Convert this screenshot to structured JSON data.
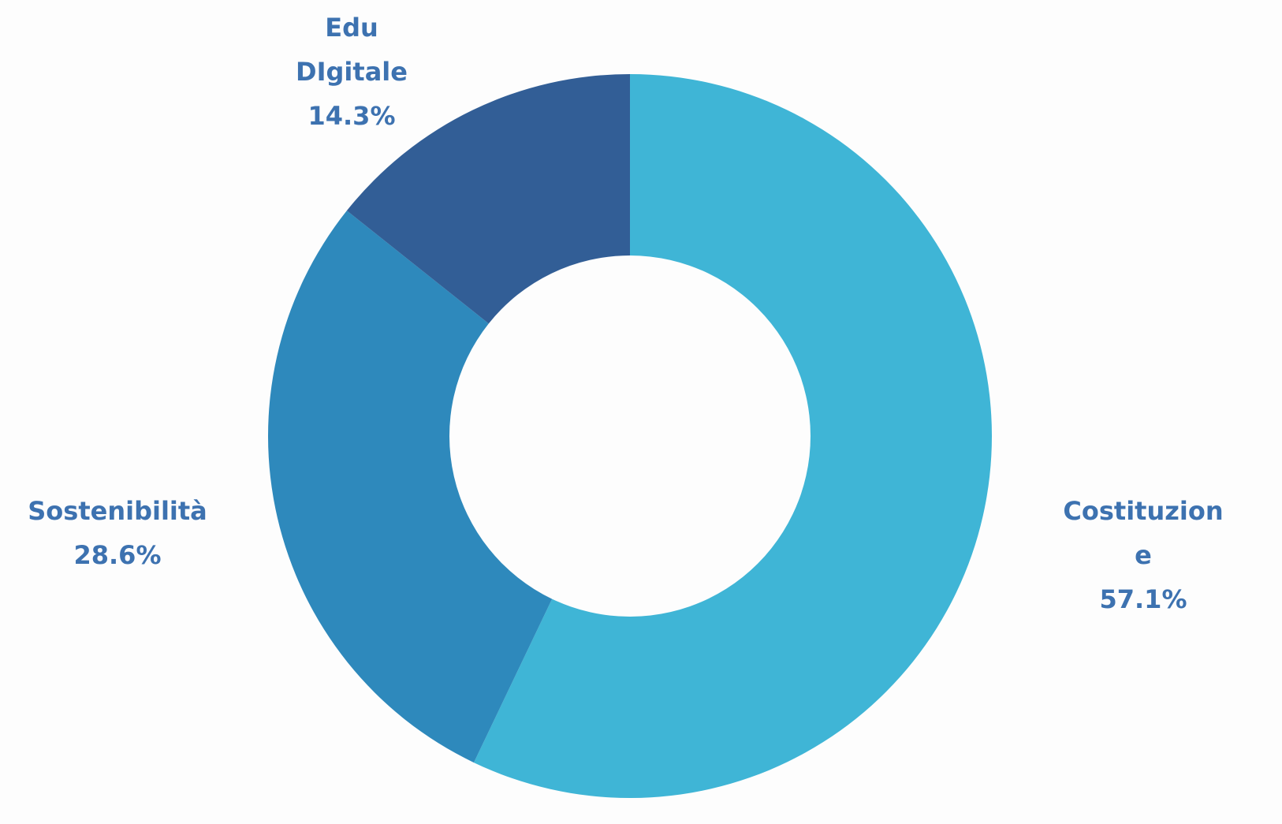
{
  "chart_data": {
    "type": "donut",
    "categories": [
      "Costituzione",
      "Sostenibilità",
      "Edu DIgitale"
    ],
    "values": [
      57.1,
      28.6,
      14.3
    ],
    "value_labels": [
      "57.1%",
      "28.6%",
      "14.3%"
    ],
    "colors": [
      "#3fb5d6",
      "#2e89bc",
      "#325e96"
    ]
  }
}
